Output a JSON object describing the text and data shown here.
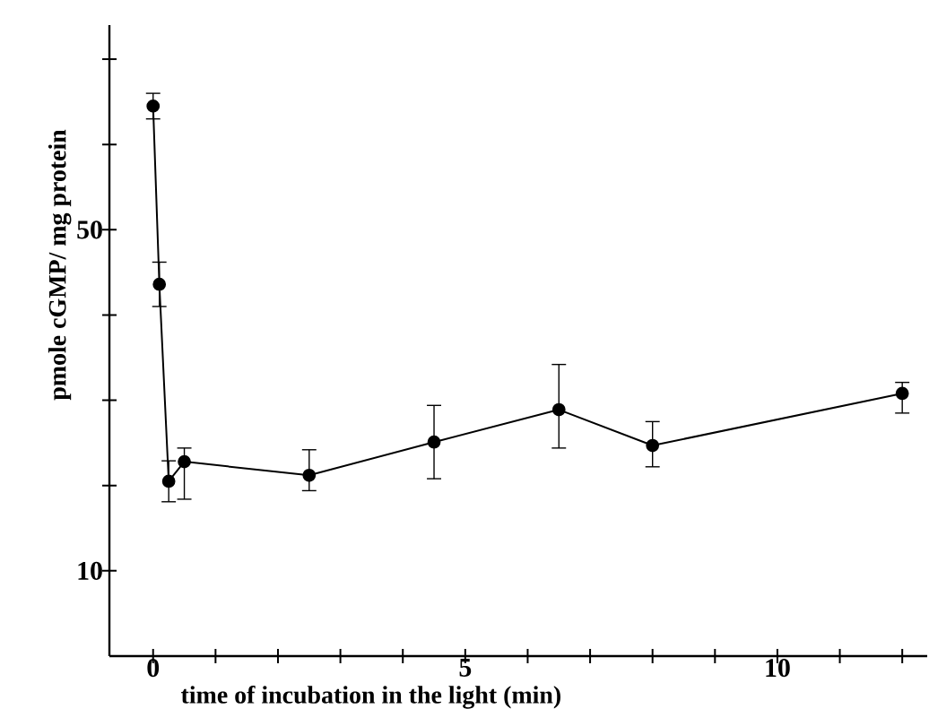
{
  "chart_data": {
    "type": "line",
    "xlabel": "time of incubation in the light  (min)",
    "ylabel": "pmole cGMP/ mg protein",
    "x": [
      0,
      0.1,
      0.25,
      0.5,
      2.5,
      4.5,
      6.5,
      8,
      12
    ],
    "series": [
      {
        "color": "#000000",
        "values": [
          64.5,
          43.6,
          20.5,
          22.8,
          21.2,
          25.1,
          28.9,
          24.7,
          30.8
        ],
        "errors": [
          1.5,
          2.6,
          2.4,
          [
            18.4,
            24.4
          ],
          [
            19.4,
            24.2
          ],
          4.3,
          [
            24.4,
            34.2
          ],
          [
            22.2,
            27.5
          ],
          [
            28.5,
            32.1
          ]
        ]
      }
    ],
    "xlim": [
      -0.7,
      12.4
    ],
    "ylim": [
      0,
      74
    ],
    "xticks": [
      0,
      {
        "value": 1,
        "label": null
      },
      {
        "value": 2,
        "label": null
      },
      {
        "value": 3,
        "label": null
      },
      {
        "value": 4,
        "label": null
      },
      5,
      {
        "value": 6,
        "label": null
      },
      {
        "value": 7,
        "label": null
      },
      {
        "value": 8,
        "label": null
      },
      {
        "value": 9,
        "label": null
      },
      10,
      {
        "value": 11,
        "label": null
      },
      {
        "value": 12,
        "label": null
      }
    ],
    "yticks": [
      10,
      {
        "value": 20,
        "label": null
      },
      {
        "value": 30,
        "label": null
      },
      {
        "value": 40,
        "label": null
      },
      50,
      {
        "value": 60,
        "label": null
      },
      {
        "value": 70,
        "label": null
      }
    ],
    "marker": "circle",
    "line_style": "solid",
    "grid": false,
    "legend": false
  }
}
